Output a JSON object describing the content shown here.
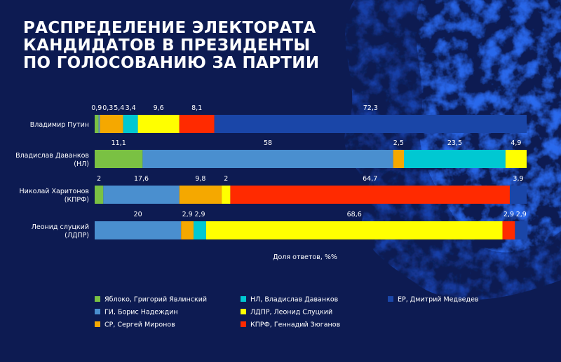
{
  "title_lines": [
    "РАСПРЕДЕЛЕНИЕ ЭЛЕКТОРАТА",
    "КАНДИДАТОВ В ПРЕЗИДЕНТЫ",
    "ПО ГОЛОСОВАНИЮ ЗА ПАРТИИ"
  ],
  "colors": {
    "background": "#0d1b52",
    "accent_splash": "#1f5ad8"
  },
  "chart_data": {
    "type": "bar",
    "orientation": "horizontal",
    "stacked": true,
    "xlabel": "Доля ответов, %%",
    "xlim": [
      0,
      100
    ],
    "grid": false,
    "legend_position": "bottom",
    "categories": [
      [
        "Владимир Путин"
      ],
      [
        "Владислав Даванков",
        "(НЛ)"
      ],
      [
        "Николай Харитонов",
        "(КПРФ)"
      ],
      [
        "Леонид слуцкий",
        "(ЛДПР)"
      ]
    ],
    "series": [
      {
        "name": "Яблоко, Григорий Явлинский",
        "color": "#7ac143",
        "values": [
          0.9,
          11.1,
          2,
          0
        ]
      },
      {
        "name": "ГИ, Борис Надеждин",
        "color": "#4a8fcf",
        "values": [
          0.3,
          58,
          17.6,
          20
        ]
      },
      {
        "name": "СР, Сергей Миронов",
        "color": "#f5a800",
        "values": [
          5.4,
          2.5,
          9.8,
          2.9
        ]
      },
      {
        "name": "НЛ, Владислав Даванков",
        "color": "#00c8d2",
        "values": [
          3.4,
          23.5,
          0,
          2.9
        ]
      },
      {
        "name": "ЛДПР, Леонид Слуцкий",
        "color": "#ffff00",
        "values": [
          9.6,
          4.9,
          2,
          68.6
        ]
      },
      {
        "name": "КПРФ, Геннадий Зюганов",
        "color": "#ff2a00",
        "values": [
          8.1,
          0,
          64.7,
          2.9
        ]
      },
      {
        "name": "ЕР, Дмитрий Медведев",
        "color": "#1a46a8",
        "values": [
          72.3,
          0,
          3.9,
          2.9
        ]
      }
    ]
  }
}
